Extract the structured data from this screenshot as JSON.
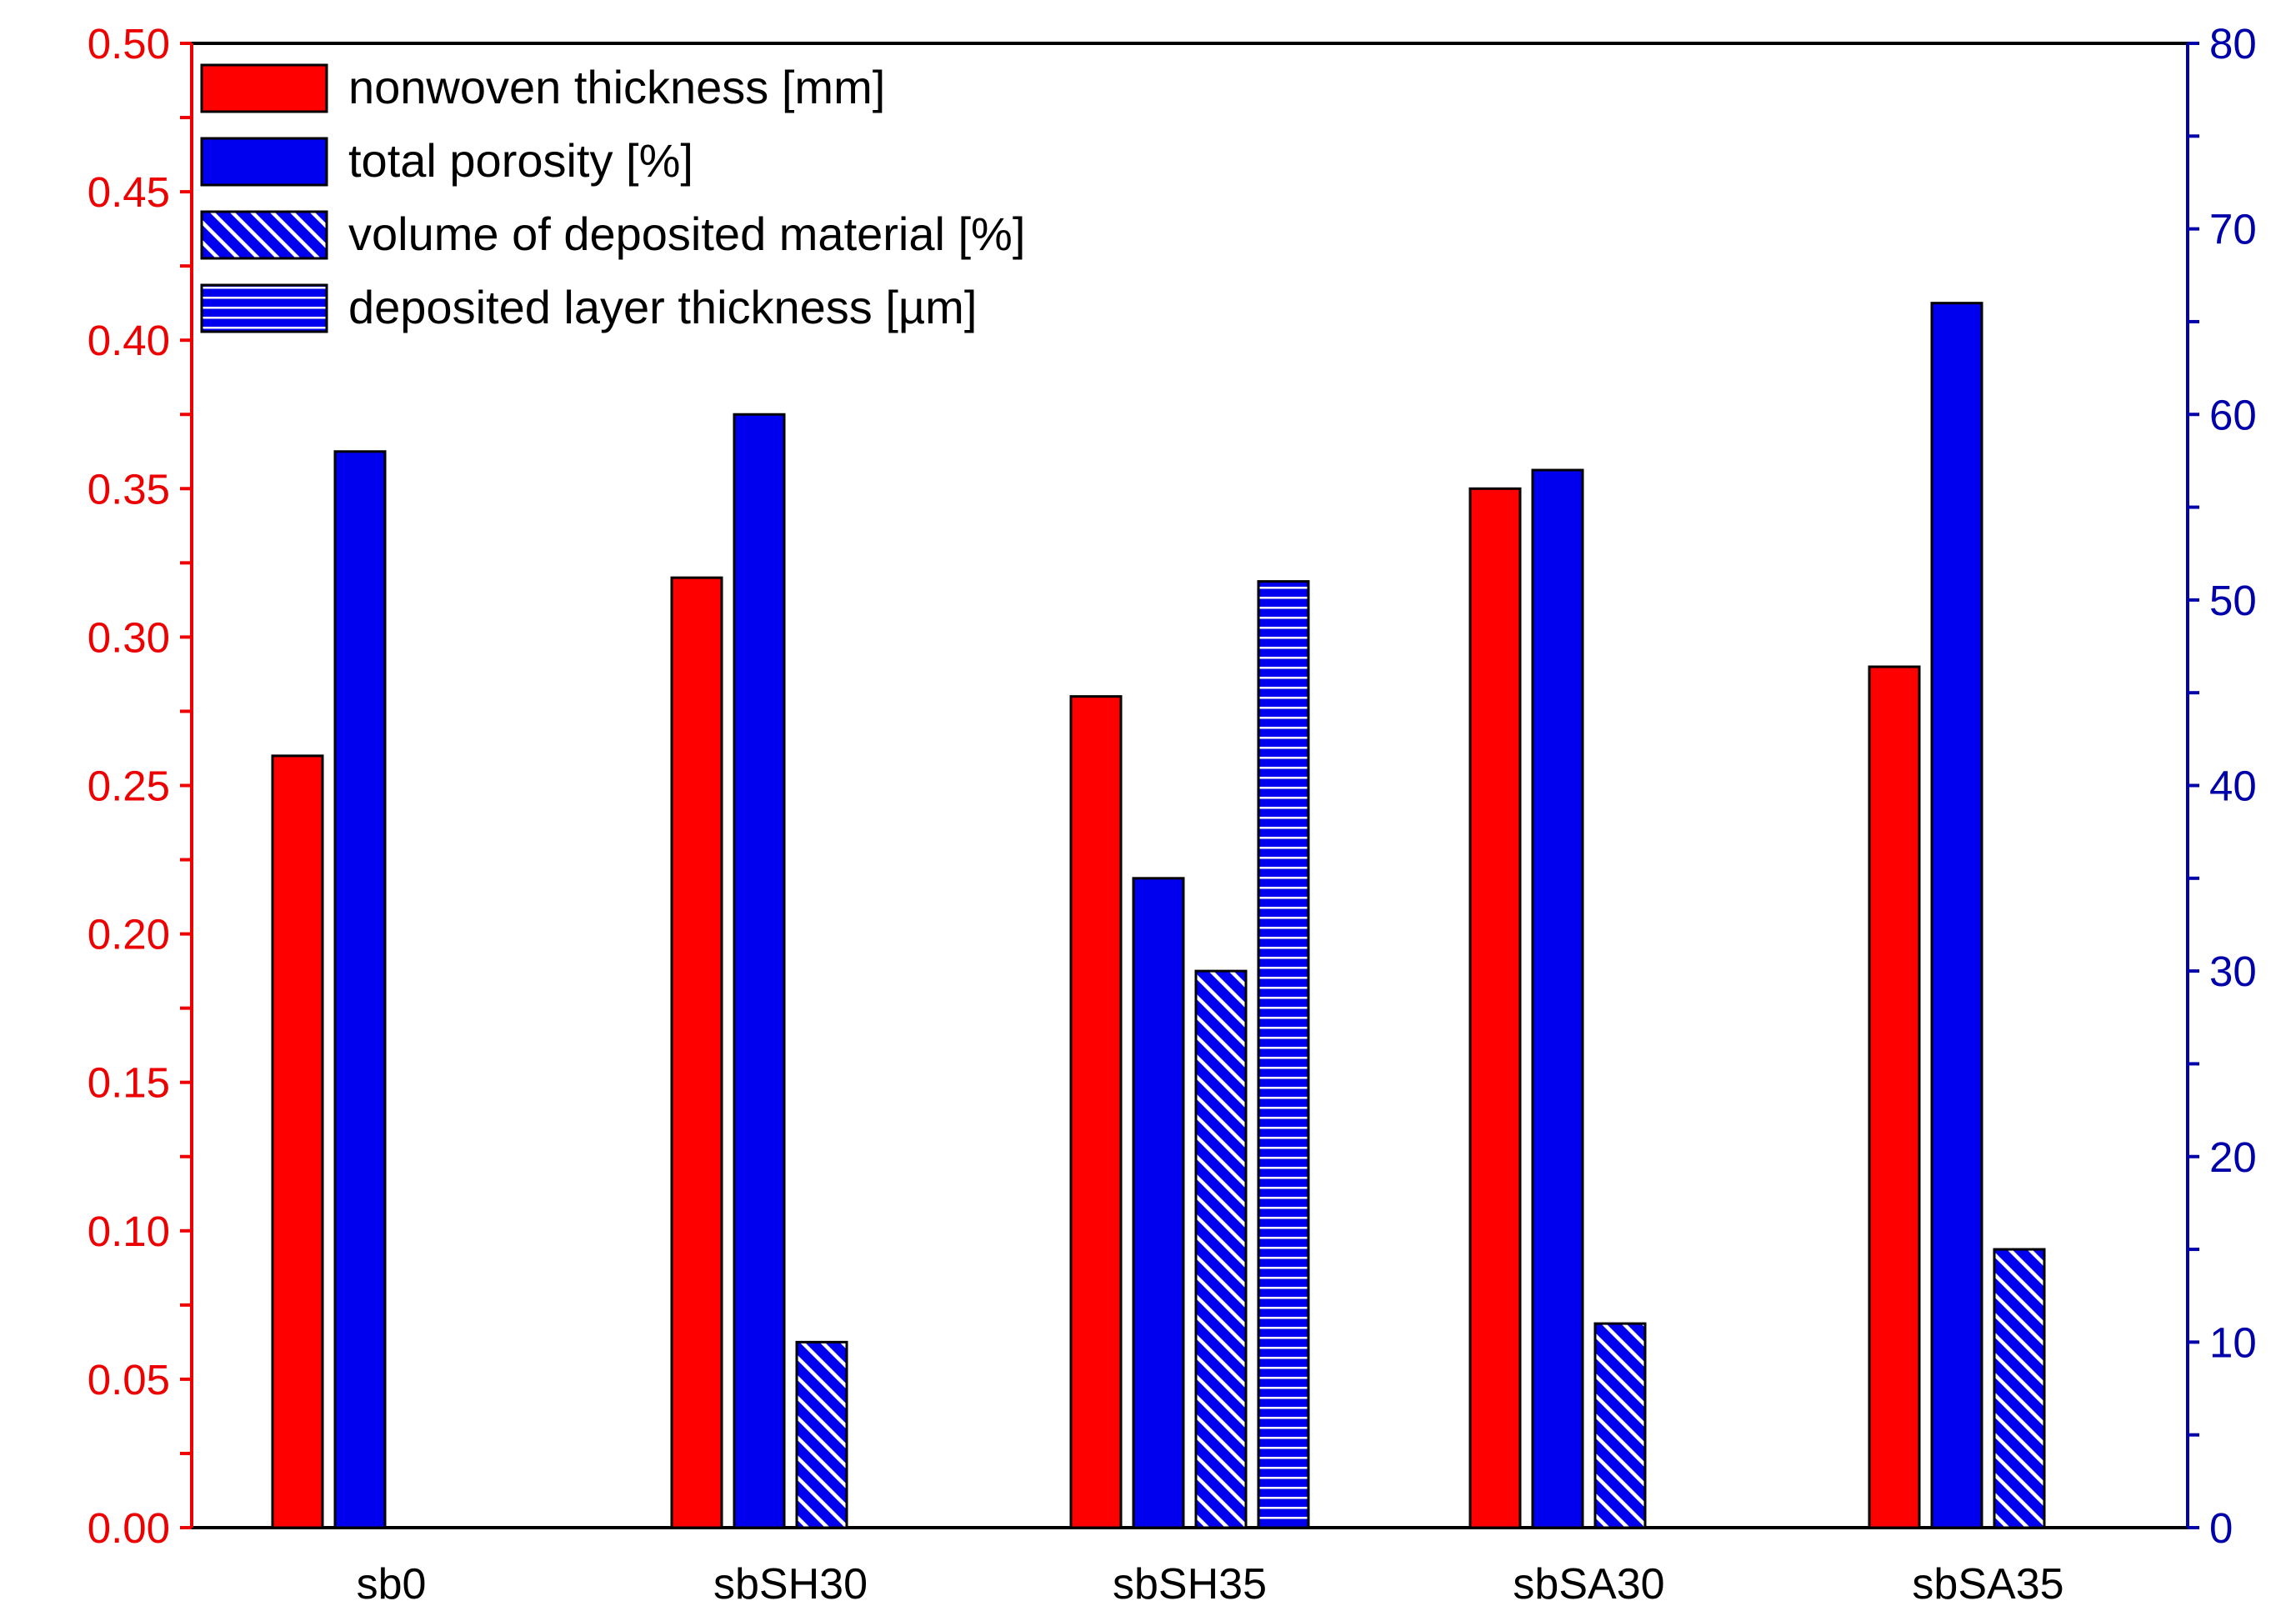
{
  "chart_data": {
    "type": "bar",
    "title": "",
    "categories": [
      "sb0",
      "sbSH30",
      "sbSH35",
      "sbSA30",
      "sbSA35"
    ],
    "left_axis": {
      "range": [
        0,
        0.5
      ],
      "ticks": [
        "0.00",
        "0.05",
        "0.10",
        "0.15",
        "0.20",
        "0.25",
        "0.30",
        "0.35",
        "0.40",
        "0.45",
        "0.50"
      ],
      "tick_values": [
        0,
        0.05,
        0.1,
        0.15,
        0.2,
        0.25,
        0.3,
        0.35,
        0.4,
        0.45,
        0.5
      ],
      "label": ""
    },
    "right_axis": {
      "range": [
        0,
        80
      ],
      "ticks": [
        "0",
        "10",
        "20",
        "30",
        "40",
        "50",
        "60",
        "70",
        "80"
      ],
      "tick_values": [
        0,
        10,
        20,
        30,
        40,
        50,
        60,
        70,
        80
      ],
      "label": ""
    },
    "series": [
      {
        "name": "nonwoven thickness [mm]",
        "axis": "left",
        "pattern": "solid",
        "color": "#ff0000",
        "values": [
          0.26,
          0.32,
          0.28,
          0.35,
          0.29
        ]
      },
      {
        "name": "total porosity [%]",
        "axis": "right",
        "pattern": "solid",
        "color": "#0000ee",
        "values": [
          58,
          60,
          35,
          57,
          66
        ]
      },
      {
        "name": "volume of deposited material [%]",
        "axis": "right",
        "pattern": "diagonal",
        "color": "#0000ee",
        "values": [
          null,
          10,
          30,
          11,
          15
        ]
      },
      {
        "name": "deposited layer thickness [µm]",
        "axis": "right",
        "pattern": "horizontal",
        "color": "#0000ee",
        "values": [
          null,
          null,
          51,
          null,
          null
        ]
      }
    ],
    "legend_position": "top-left",
    "colors": {
      "left_axis": "#ee0000",
      "right_axis": "#0000aa",
      "frame": "#000000"
    }
  }
}
